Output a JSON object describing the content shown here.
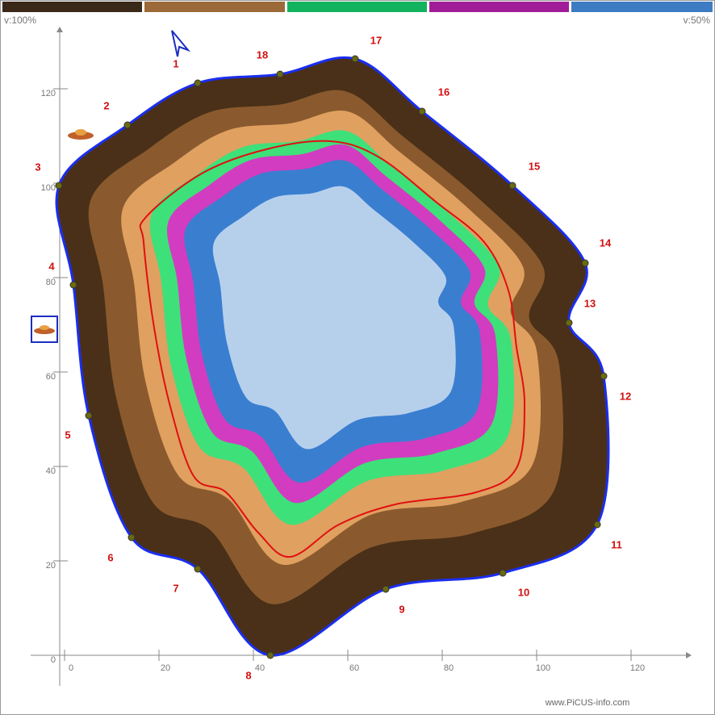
{
  "legend": {
    "left_label": "v:100%",
    "right_label": "v:50%"
  },
  "axes": {
    "x_ticks": [
      0,
      20,
      40,
      60,
      80,
      100,
      120
    ],
    "y_ticks": [
      0,
      20,
      40,
      60,
      80,
      100,
      120
    ]
  },
  "sensors": [
    "1",
    "2",
    "3",
    "4",
    "5",
    "6",
    "7",
    "8",
    "9",
    "10",
    "11",
    "12",
    "13",
    "14",
    "15",
    "16",
    "17",
    "18"
  ],
  "footer": {
    "watermark": "www.PiCUS-info.com"
  }
}
